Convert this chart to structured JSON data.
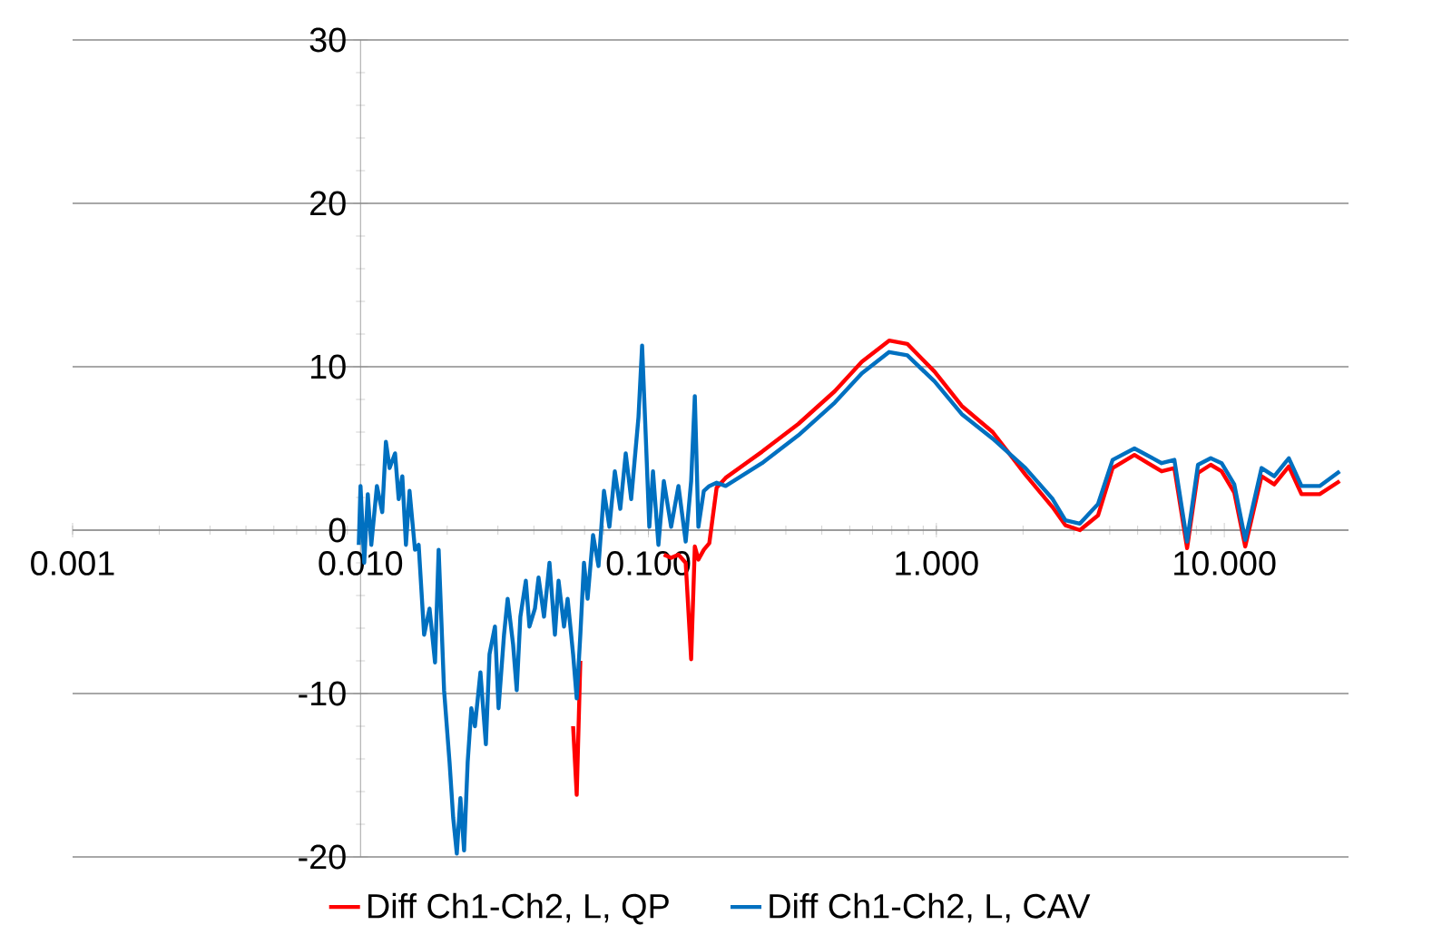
{
  "chart_data": {
    "type": "line",
    "log": "x",
    "grid": "y",
    "legend": "bottom",
    "x": [
      0.00986,
      0.01,
      0.0103,
      0.0106,
      0.0109,
      0.0114,
      0.0119,
      0.01225,
      0.01262,
      0.01318,
      0.01357,
      0.01397,
      0.01438,
      0.0148,
      0.01546,
      0.01592,
      0.01663,
      0.01737,
      0.01815,
      0.01868,
      0.01951,
      0.02038,
      0.02098,
      0.0216,
      0.02223,
      0.02289,
      0.02356,
      0.02426,
      0.02497,
      0.02609,
      0.02725,
      0.02805,
      0.0293,
      0.03016,
      0.03151,
      0.03243,
      0.03388,
      0.03488,
      0.03591,
      0.03751,
      0.03862,
      0.04034,
      0.04153,
      0.04338,
      0.04532,
      0.04733,
      0.04873,
      0.0509,
      0.0524,
      0.05474,
      0.05635,
      0.05801,
      0.05971,
      0.06147,
      0.06422,
      0.06708,
      0.07007,
      0.07318,
      0.07644,
      0.07984,
      0.08339,
      0.08711,
      0.09233,
      0.09505,
      0.09784,
      0.1007,
      0.1037,
      0.1083,
      0.1131,
      0.1199,
      0.1271,
      0.1347,
      0.1407,
      0.1449,
      0.1491,
      0.1557,
      0.1627,
      0.1725,
      0.1854,
      0.248,
      0.3316,
      0.4436,
      0.551,
      0.6855,
      0.7927,
      0.9856,
      1.225,
      1.569,
      2.038,
      2.534,
      2.805,
      3.151,
      3.643,
      4.093,
      4.873,
      6.057,
      6.708,
      7.427,
      8.101,
      8.969,
      9.784,
      10.83,
      11.82,
      13.47,
      14.91,
      16.75,
      18.54,
      21.44,
      25.16
    ],
    "series": [
      {
        "name": "Diff Ch1-Ch2, L, QP",
        "color": "#ff0000",
        "values": [
          null,
          null,
          null,
          null,
          null,
          null,
          null,
          null,
          null,
          null,
          null,
          null,
          null,
          null,
          null,
          null,
          null,
          null,
          null,
          null,
          null,
          null,
          null,
          null,
          null,
          null,
          null,
          null,
          null,
          null,
          null,
          null,
          null,
          null,
          null,
          null,
          null,
          null,
          null,
          null,
          null,
          null,
          null,
          null,
          null,
          null,
          null,
          null,
          null,
          -12.0,
          -16.2,
          -8.0,
          null,
          null,
          null,
          null,
          null,
          null,
          null,
          null,
          null,
          null,
          null,
          null,
          null,
          null,
          null,
          null,
          -1.5,
          -1.7,
          -1.5,
          -2.0,
          -7.9,
          -1.0,
          -1.8,
          -1.2,
          -0.8,
          2.6,
          3.2,
          4.8,
          6.5,
          8.5,
          10.3,
          11.6,
          11.4,
          9.7,
          7.6,
          6.0,
          3.4,
          1.4,
          0.3,
          0.0,
          0.9,
          3.8,
          4.6,
          3.6,
          3.8,
          -1.1,
          3.5,
          4.0,
          3.6,
          2.3,
          -1.0,
          3.3,
          2.8,
          3.9,
          2.2,
          2.2,
          3.0
        ]
      },
      {
        "name": "Diff Ch1-Ch2, L, CAV",
        "color": "#0070c0",
        "values": [
          -0.9,
          2.7,
          -2.0,
          2.2,
          -0.9,
          2.7,
          1.1,
          5.4,
          3.8,
          4.7,
          1.9,
          3.3,
          -0.9,
          2.4,
          -1.2,
          -0.9,
          -6.4,
          -4.8,
          -8.1,
          -1.2,
          -9.8,
          -14.2,
          -17.6,
          -19.8,
          -16.4,
          -19.6,
          -14.2,
          -10.9,
          -12.0,
          -8.7,
          -13.1,
          -7.6,
          -5.9,
          -10.9,
          -6.4,
          -4.2,
          -7.0,
          -9.8,
          -5.3,
          -3.1,
          -5.9,
          -4.8,
          -2.9,
          -5.3,
          -2.0,
          -6.4,
          -3.1,
          -5.9,
          -4.2,
          -7.6,
          -10.3,
          -6.4,
          -2.0,
          -4.2,
          -0.3,
          -2.2,
          2.4,
          0.2,
          3.6,
          1.3,
          4.7,
          1.9,
          6.9,
          11.3,
          5.8,
          0.2,
          3.6,
          -0.9,
          3.0,
          0.2,
          2.7,
          -0.7,
          3.0,
          8.2,
          0.2,
          2.4,
          2.7,
          2.9,
          2.7,
          4.1,
          5.8,
          7.8,
          9.6,
          10.9,
          10.7,
          9.1,
          7.1,
          5.6,
          3.8,
          1.9,
          0.6,
          0.4,
          1.6,
          4.3,
          5.0,
          4.1,
          4.3,
          -0.7,
          4.0,
          4.4,
          4.1,
          2.8,
          -0.6,
          3.8,
          3.3,
          4.4,
          2.7,
          2.7,
          3.6
        ]
      }
    ],
    "xlim": [
      0.001,
      27
    ],
    "xticks": [
      0.001,
      {
        "value": 0.01,
        "label": "0.010"
      },
      {
        "value": 0.1,
        "label": "0.100"
      },
      {
        "value": 1,
        "label": "1.000"
      },
      {
        "value": 10,
        "label": "10.000"
      }
    ],
    "ylim": [
      -20,
      30
    ],
    "yticks": [
      -20,
      -10,
      0,
      10,
      20,
      30
    ]
  }
}
